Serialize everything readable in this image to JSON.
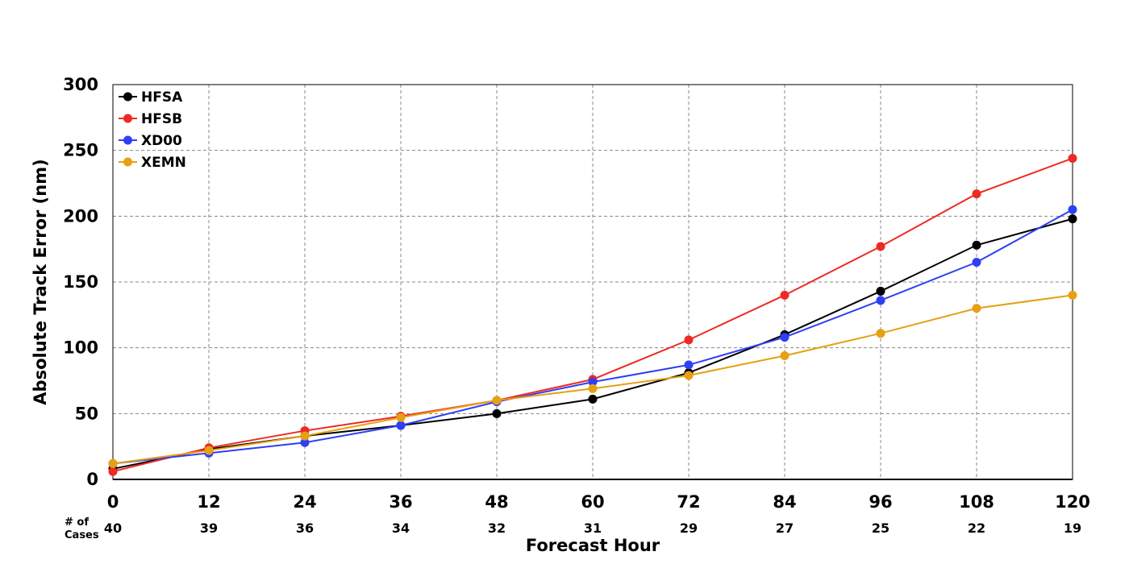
{
  "chart_data": {
    "type": "line",
    "title": "",
    "xlabel": "Forecast Hour",
    "ylabel": "Absolute Track Error (nm)",
    "x": [
      0,
      12,
      24,
      36,
      48,
      60,
      72,
      84,
      96,
      108,
      120
    ],
    "xlim": [
      0,
      120
    ],
    "ylim": [
      0,
      300
    ],
    "x_ticks": [
      "0",
      "12",
      "24",
      "36",
      "48",
      "60",
      "72",
      "84",
      "96",
      "108",
      "120"
    ],
    "y_ticks": [
      "0",
      "50",
      "100",
      "150",
      "200",
      "250",
      "300"
    ],
    "y_tick_values": [
      0,
      50,
      100,
      150,
      200,
      250,
      300
    ],
    "grid": true,
    "legend_position": "top-left",
    "cases_label_line1": "# of",
    "cases_label_line2": "Cases",
    "cases": [
      "40",
      "39",
      "36",
      "34",
      "32",
      "31",
      "29",
      "27",
      "25",
      "22",
      "19"
    ],
    "series": [
      {
        "name": "HFSA",
        "color": "#000000",
        "values": [
          8,
          23,
          33,
          41,
          50,
          61,
          81,
          110,
          143,
          178,
          198
        ]
      },
      {
        "name": "HFSB",
        "color": "#ee2a24",
        "values": [
          6,
          24,
          37,
          48,
          60,
          76,
          106,
          140,
          177,
          217,
          244
        ]
      },
      {
        "name": "XD00",
        "color": "#2e3ff5",
        "values": [
          12,
          20,
          28,
          41,
          59,
          74,
          87,
          108,
          136,
          165,
          205
        ]
      },
      {
        "name": "XEMN",
        "color": "#e6a012",
        "values": [
          12,
          22,
          33,
          47,
          60,
          69,
          79,
          94,
          111,
          130,
          140
        ]
      }
    ]
  }
}
